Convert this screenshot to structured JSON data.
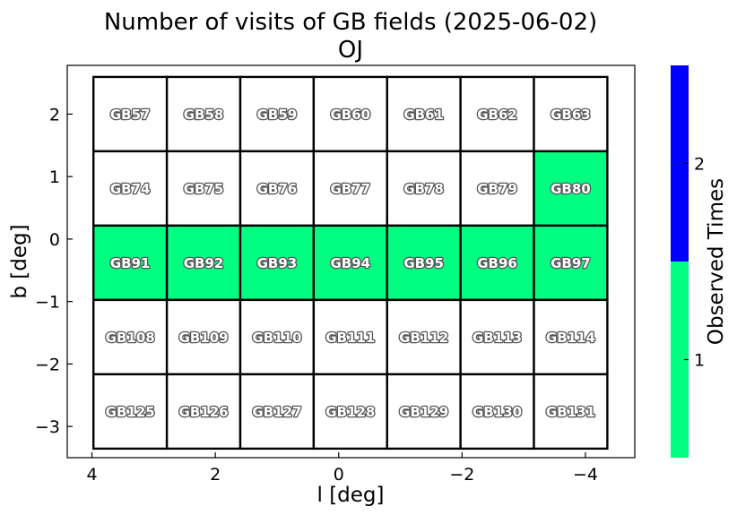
{
  "chart_data": {
    "type": "heatmap",
    "title": "Number of visits of GB fields (2025-06-02)",
    "subtitle": "OJ",
    "xlabel": "l [deg]",
    "ylabel": "b [deg]",
    "xlim": [
      4.4,
      -4.8
    ],
    "ylim": [
      -3.5,
      2.78
    ],
    "x_ticks": [
      4,
      2,
      0,
      -2,
      -4
    ],
    "x_tick_labels": [
      "4",
      "2",
      "0",
      "−2",
      "−4"
    ],
    "y_ticks": [
      2,
      1,
      0,
      -1,
      -2,
      -3
    ],
    "y_tick_labels": [
      "2",
      "1",
      "0",
      "−1",
      "−2",
      "−3"
    ],
    "grid": false,
    "field_width_deg": 1.19,
    "field_height_deg": 1.19,
    "fields": [
      {
        "name": "GB57",
        "l": 3.38,
        "b": 2.0,
        "visits": 0
      },
      {
        "name": "GB58",
        "l": 2.19,
        "b": 2.0,
        "visits": 0
      },
      {
        "name": "GB59",
        "l": 1.0,
        "b": 2.0,
        "visits": 0
      },
      {
        "name": "GB60",
        "l": -0.19,
        "b": 2.0,
        "visits": 0
      },
      {
        "name": "GB61",
        "l": -1.38,
        "b": 2.0,
        "visits": 0
      },
      {
        "name": "GB62",
        "l": -2.57,
        "b": 2.0,
        "visits": 0
      },
      {
        "name": "GB63",
        "l": -3.76,
        "b": 2.0,
        "visits": 0
      },
      {
        "name": "GB74",
        "l": 3.38,
        "b": 0.81,
        "visits": 0
      },
      {
        "name": "GB75",
        "l": 2.19,
        "b": 0.81,
        "visits": 0
      },
      {
        "name": "GB76",
        "l": 1.0,
        "b": 0.81,
        "visits": 0
      },
      {
        "name": "GB77",
        "l": -0.19,
        "b": 0.81,
        "visits": 0
      },
      {
        "name": "GB78",
        "l": -1.38,
        "b": 0.81,
        "visits": 0
      },
      {
        "name": "GB79",
        "l": -2.57,
        "b": 0.81,
        "visits": 0
      },
      {
        "name": "GB80",
        "l": -3.76,
        "b": 0.81,
        "visits": 1
      },
      {
        "name": "GB91",
        "l": 3.38,
        "b": -0.38,
        "visits": 1
      },
      {
        "name": "GB92",
        "l": 2.19,
        "b": -0.38,
        "visits": 1
      },
      {
        "name": "GB93",
        "l": 1.0,
        "b": -0.38,
        "visits": 1
      },
      {
        "name": "GB94",
        "l": -0.19,
        "b": -0.38,
        "visits": 1
      },
      {
        "name": "GB95",
        "l": -1.38,
        "b": -0.38,
        "visits": 1
      },
      {
        "name": "GB96",
        "l": -2.57,
        "b": -0.38,
        "visits": 1
      },
      {
        "name": "GB97",
        "l": -3.76,
        "b": -0.38,
        "visits": 1
      },
      {
        "name": "GB108",
        "l": 3.38,
        "b": -1.57,
        "visits": 0
      },
      {
        "name": "GB109",
        "l": 2.19,
        "b": -1.57,
        "visits": 0
      },
      {
        "name": "GB110",
        "l": 1.0,
        "b": -1.57,
        "visits": 0
      },
      {
        "name": "GB111",
        "l": -0.19,
        "b": -1.57,
        "visits": 0
      },
      {
        "name": "GB112",
        "l": -1.38,
        "b": -1.57,
        "visits": 0
      },
      {
        "name": "GB113",
        "l": -2.57,
        "b": -1.57,
        "visits": 0
      },
      {
        "name": "GB114",
        "l": -3.76,
        "b": -1.57,
        "visits": 0
      },
      {
        "name": "GB125",
        "l": 3.38,
        "b": -2.76,
        "visits": 0
      },
      {
        "name": "GB126",
        "l": 2.19,
        "b": -2.76,
        "visits": 0
      },
      {
        "name": "GB127",
        "l": 1.0,
        "b": -2.76,
        "visits": 0
      },
      {
        "name": "GB128",
        "l": -0.19,
        "b": -2.76,
        "visits": 0
      },
      {
        "name": "GB129",
        "l": -1.38,
        "b": -2.76,
        "visits": 0
      },
      {
        "name": "GB130",
        "l": -2.57,
        "b": -2.76,
        "visits": 0
      },
      {
        "name": "GB131",
        "l": -3.76,
        "b": -2.76,
        "visits": 0
      }
    ],
    "colorbar": {
      "label": "Observed Times",
      "range": [
        0.5,
        2.5
      ],
      "ticks": [
        1,
        2
      ],
      "tick_labels": [
        "1",
        "2"
      ],
      "levels": [
        {
          "value": 1,
          "color": "#00ff80"
        },
        {
          "value": 2,
          "color": "#0000ff"
        }
      ]
    },
    "unvisited_color": "#ffffff"
  }
}
